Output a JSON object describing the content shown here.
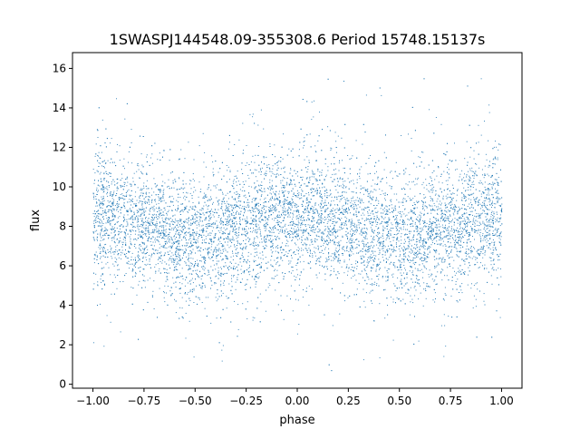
{
  "chart_data": {
    "type": "scatter",
    "title": "1SWASPJ144548.09-355308.6 Period 15748.15137s",
    "xlabel": "phase",
    "ylabel": "flux",
    "xlim": [
      -1.1,
      1.1
    ],
    "ylim": [
      -0.2,
      16.8
    ],
    "xticks": [
      -1.0,
      -0.75,
      -0.5,
      -0.25,
      0.0,
      0.25,
      0.5,
      0.75,
      1.0
    ],
    "xtick_labels": [
      "−1.00",
      "−0.75",
      "−0.50",
      "−0.25",
      "0.00",
      "0.25",
      "0.50",
      "0.75",
      "1.00"
    ],
    "yticks": [
      0,
      2,
      4,
      6,
      8,
      10,
      12,
      14,
      16
    ],
    "ytick_labels": [
      "0",
      "2",
      "4",
      "6",
      "8",
      "10",
      "12",
      "14",
      "16"
    ],
    "grid": false,
    "point_color": "#1f77b4",
    "binned_profile": {
      "phase": [
        -1.0,
        -0.75,
        -0.5,
        -0.25,
        0.0,
        0.25,
        0.5,
        0.75,
        1.0
      ],
      "mean_flux": [
        8.6,
        8.2,
        7.3,
        8.0,
        8.6,
        8.2,
        7.3,
        8.0,
        8.6
      ],
      "flux_std": 1.5,
      "flux_range": [
        0.5,
        16.0
      ]
    }
  }
}
